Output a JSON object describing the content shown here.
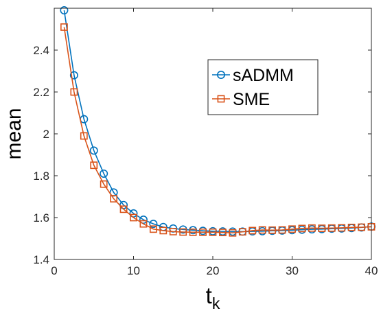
{
  "chart_data": {
    "type": "line",
    "xlabel": "t",
    "xlabel_subscript": "k",
    "ylabel": "mean",
    "xlim": [
      0,
      40
    ],
    "ylim": [
      1.4,
      2.6
    ],
    "xticks": [
      "0",
      "10",
      "20",
      "30",
      "40"
    ],
    "yticks": [
      "1.4",
      "1.6",
      "1.8",
      "2",
      "2.2",
      "2.4"
    ],
    "legend_position": "upper-right-center",
    "series": [
      {
        "name": "sADMM",
        "color": "#0072BD",
        "marker": "circle",
        "points": [
          [
            1.25,
            2.59
          ],
          [
            2.5,
            2.28
          ],
          [
            3.75,
            2.07
          ],
          [
            5.0,
            1.92
          ],
          [
            6.25,
            1.81
          ],
          [
            7.5,
            1.72
          ],
          [
            8.75,
            1.66
          ],
          [
            10.0,
            1.62
          ],
          [
            11.25,
            1.59
          ],
          [
            12.5,
            1.57
          ],
          [
            13.75,
            1.555
          ],
          [
            15.0,
            1.548
          ],
          [
            16.25,
            1.543
          ],
          [
            17.5,
            1.54
          ],
          [
            18.75,
            1.537
          ],
          [
            20.0,
            1.535
          ],
          [
            21.25,
            1.534
          ],
          [
            22.5,
            1.533
          ],
          [
            23.75,
            1.533
          ],
          [
            25.0,
            1.534
          ],
          [
            26.25,
            1.535
          ],
          [
            27.5,
            1.537
          ],
          [
            28.75,
            1.538
          ],
          [
            30.0,
            1.54
          ],
          [
            31.25,
            1.542
          ],
          [
            32.5,
            1.544
          ],
          [
            33.75,
            1.545
          ],
          [
            35.0,
            1.547
          ],
          [
            36.25,
            1.548
          ],
          [
            37.5,
            1.55
          ],
          [
            38.75,
            1.553
          ],
          [
            40.0,
            1.557
          ]
        ]
      },
      {
        "name": "SME",
        "color": "#D95319",
        "marker": "square",
        "points": [
          [
            1.25,
            2.51
          ],
          [
            2.5,
            2.2
          ],
          [
            3.75,
            1.99
          ],
          [
            5.0,
            1.85
          ],
          [
            6.25,
            1.76
          ],
          [
            7.5,
            1.69
          ],
          [
            8.75,
            1.64
          ],
          [
            10.0,
            1.6
          ],
          [
            11.25,
            1.57
          ],
          [
            12.5,
            1.545
          ],
          [
            13.75,
            1.538
          ],
          [
            15.0,
            1.533
          ],
          [
            16.25,
            1.531
          ],
          [
            17.5,
            1.53
          ],
          [
            18.75,
            1.53
          ],
          [
            20.0,
            1.53
          ],
          [
            21.25,
            1.529
          ],
          [
            22.5,
            1.527
          ],
          [
            23.75,
            1.532
          ],
          [
            25.0,
            1.538
          ],
          [
            26.25,
            1.541
          ],
          [
            27.5,
            1.54
          ],
          [
            28.75,
            1.541
          ],
          [
            30.0,
            1.545
          ],
          [
            31.25,
            1.548
          ],
          [
            32.5,
            1.55
          ],
          [
            33.75,
            1.549
          ],
          [
            35.0,
            1.55
          ],
          [
            36.25,
            1.551
          ],
          [
            37.5,
            1.553
          ],
          [
            38.75,
            1.554
          ],
          [
            40.0,
            1.556
          ]
        ]
      }
    ]
  }
}
